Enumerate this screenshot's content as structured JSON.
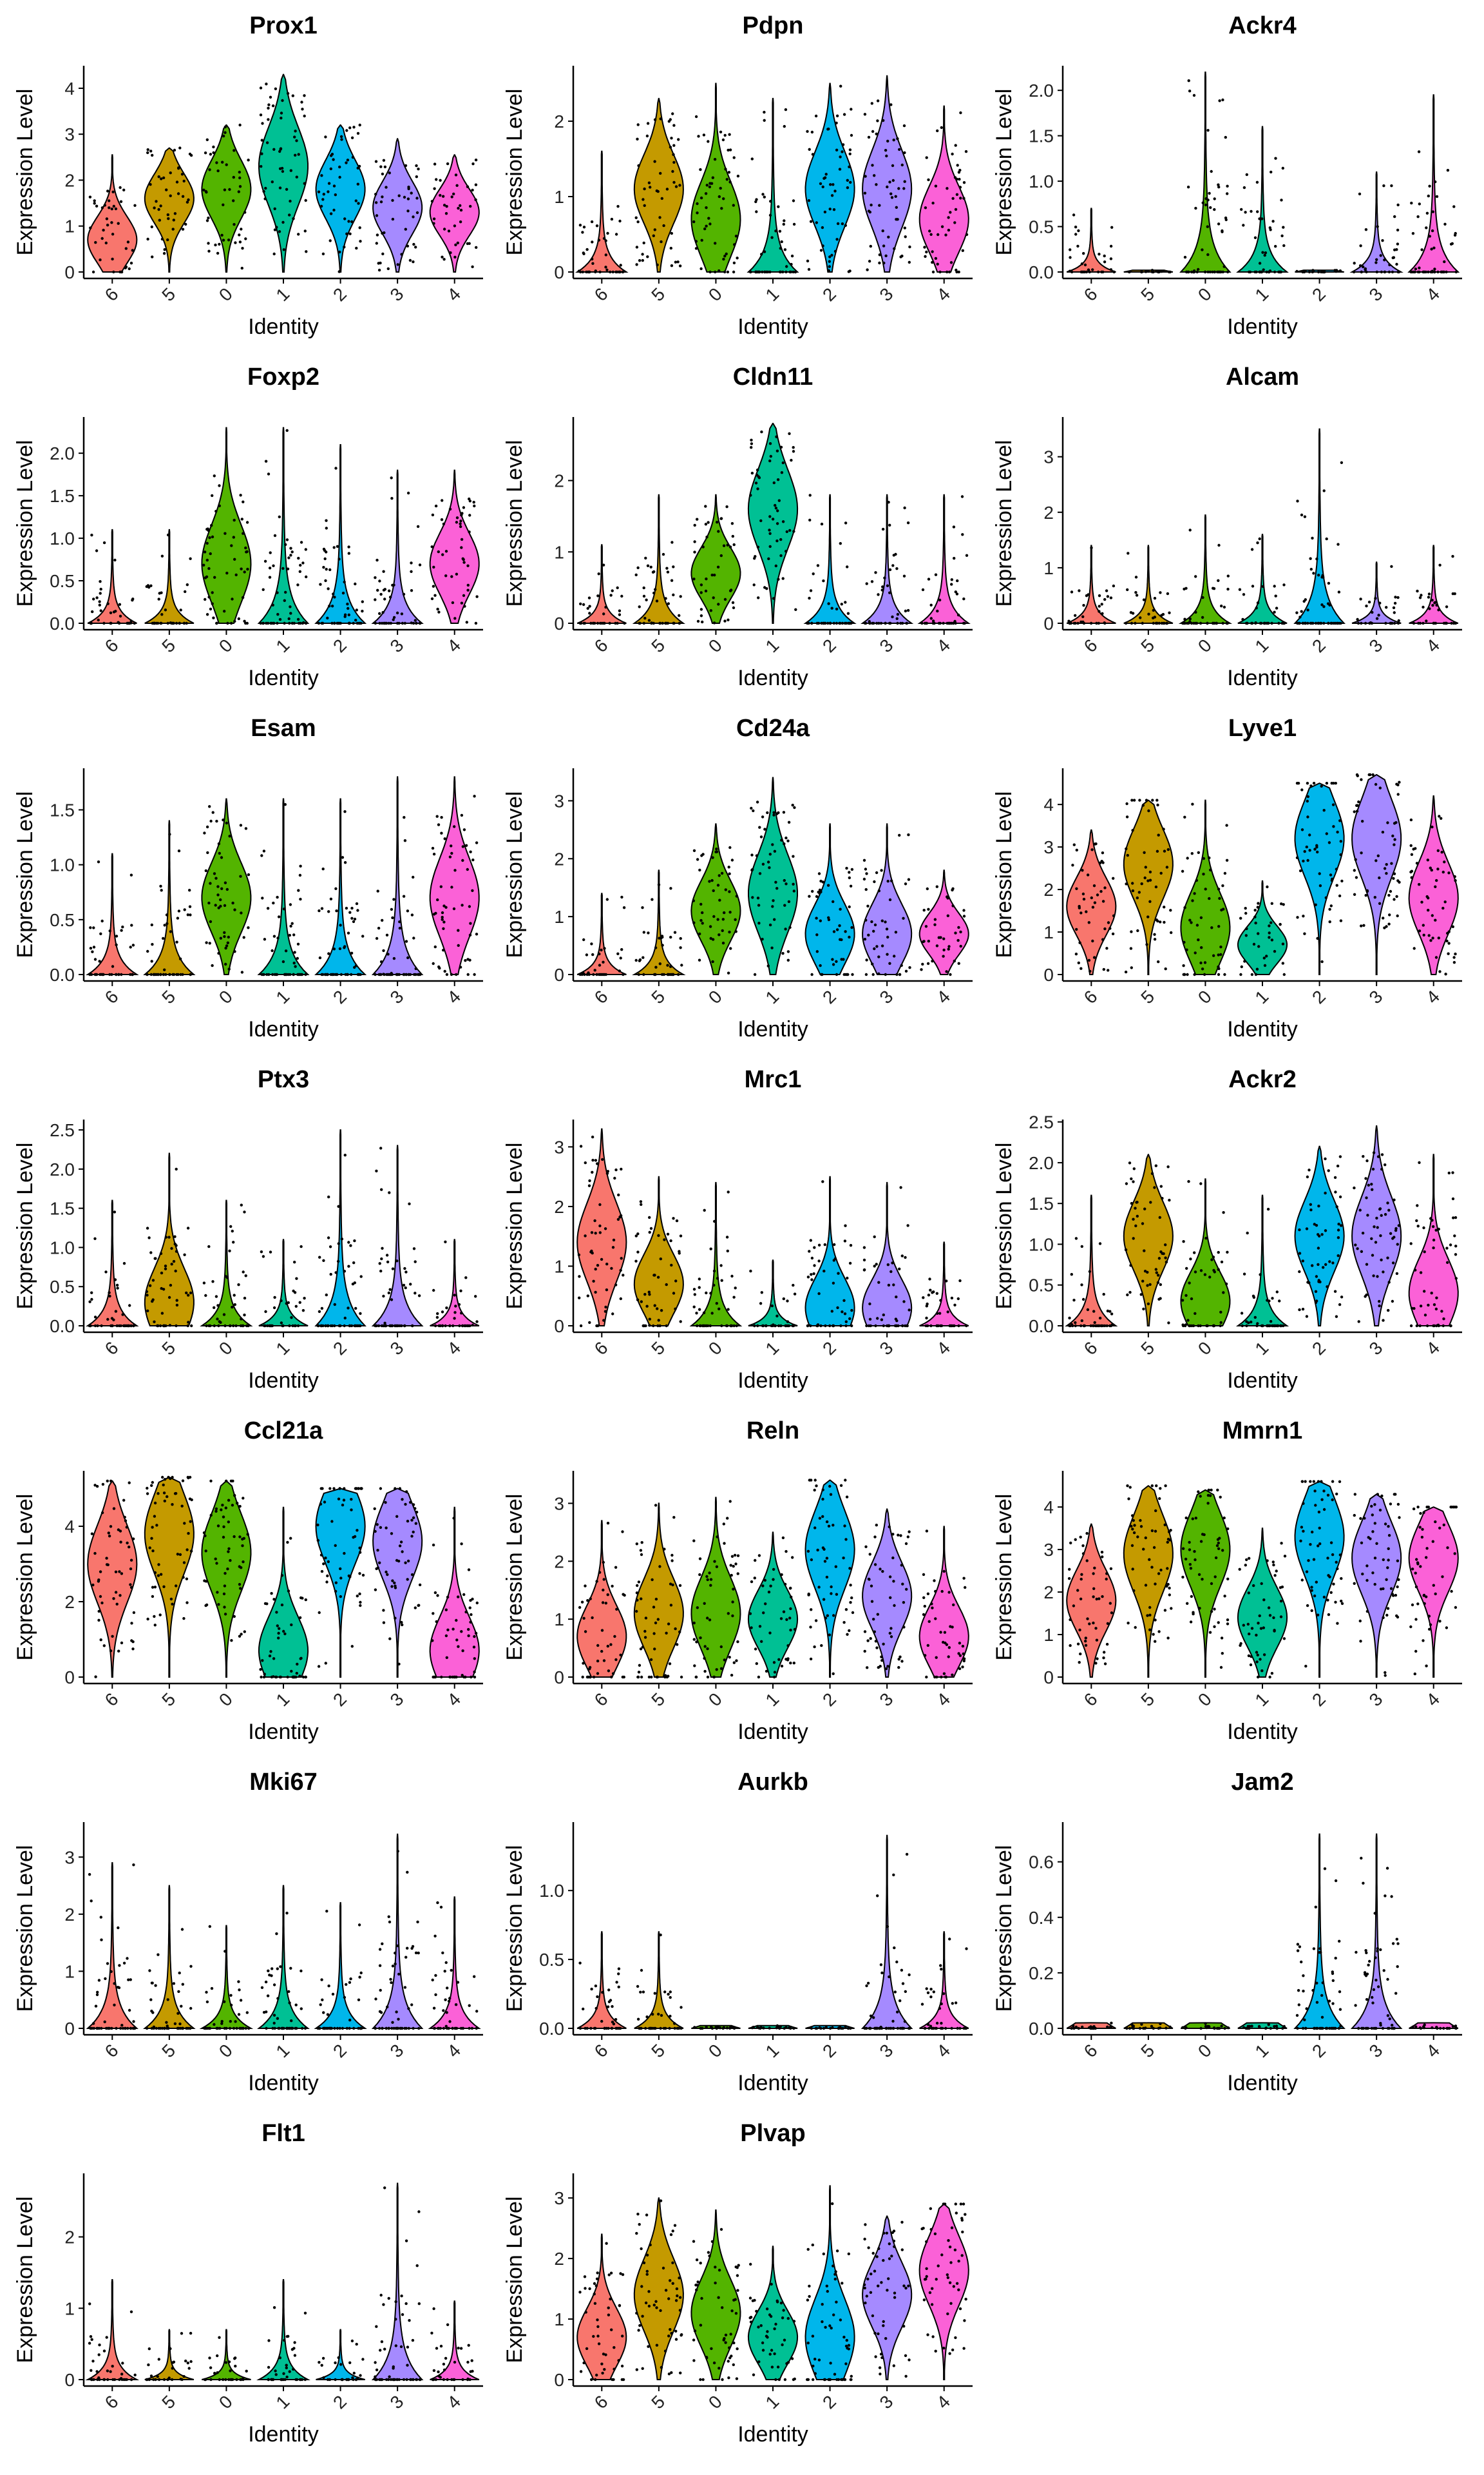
{
  "chart_data": {
    "type": "violin",
    "categories": [
      "6",
      "5",
      "0",
      "1",
      "2",
      "3",
      "4"
    ],
    "colors": [
      "#F8766D",
      "#C49A00",
      "#53B400",
      "#00C094",
      "#00B6EB",
      "#A58AFF",
      "#FB61D7"
    ],
    "xlabel": "Identity",
    "ylabel": "Expression Level",
    "points_shown": true,
    "grid": false,
    "legend": "none",
    "panels": [
      {
        "title": "Prox1",
        "ylim": [
          0,
          4.35
        ],
        "yticks": [
          0,
          1,
          2,
          3,
          4
        ],
        "median": [
          0.7,
          1.6,
          1.8,
          2.3,
          1.8,
          1.4,
          1.3
        ],
        "max": [
          2.55,
          2.7,
          3.2,
          4.3,
          3.2,
          2.9,
          2.55
        ]
      },
      {
        "title": "Pdpn",
        "ylim": [
          0,
          2.65
        ],
        "yticks": [
          0,
          1,
          2
        ],
        "median": [
          0.0,
          1.1,
          0.7,
          0.0,
          1.1,
          1.1,
          0.7
        ],
        "max": [
          1.6,
          2.3,
          2.5,
          2.3,
          2.5,
          2.6,
          2.2
        ]
      },
      {
        "title": "Ackr4",
        "ylim": [
          0,
          2.2
        ],
        "yticks": [
          0,
          0.5,
          1.0,
          1.5,
          2.0
        ],
        "median": [
          0,
          0,
          0,
          0,
          0,
          0,
          0
        ],
        "max": [
          0.7,
          0.0,
          2.2,
          1.6,
          0.0,
          1.1,
          1.95
        ]
      },
      {
        "title": "Foxp2",
        "ylim": [
          0,
          2.35
        ],
        "yticks": [
          0,
          0.5,
          1.0,
          1.5,
          2.0
        ],
        "median": [
          0,
          0,
          0.7,
          0.0,
          0,
          0,
          0.7
        ],
        "max": [
          1.1,
          1.1,
          2.3,
          2.3,
          2.1,
          1.8,
          1.8
        ]
      },
      {
        "title": "Cldn11",
        "ylim": [
          0,
          2.8
        ],
        "yticks": [
          0,
          1,
          2
        ],
        "median": [
          0,
          0,
          0.7,
          1.6,
          0,
          0,
          0
        ],
        "max": [
          1.1,
          1.8,
          1.8,
          2.8,
          1.8,
          1.8,
          1.8
        ]
      },
      {
        "title": "Alcam",
        "ylim": [
          0,
          3.6
        ],
        "yticks": [
          0,
          1,
          2,
          3
        ],
        "median": [
          0,
          0,
          0,
          0,
          0,
          0,
          0
        ],
        "max": [
          1.4,
          1.4,
          1.95,
          1.6,
          3.5,
          1.1,
          1.4
        ]
      },
      {
        "title": "Esam",
        "ylim": [
          0,
          1.82
        ],
        "yticks": [
          0,
          0.5,
          1.0,
          1.5
        ],
        "median": [
          0,
          0,
          0.7,
          0.0,
          0,
          0,
          0.7
        ],
        "max": [
          1.1,
          1.4,
          1.6,
          1.6,
          1.6,
          1.8,
          1.8
        ]
      },
      {
        "title": "Cd24a",
        "ylim": [
          0,
          3.45
        ],
        "yticks": [
          0,
          1,
          2,
          3
        ],
        "median": [
          0,
          0,
          1.1,
          1.4,
          0.7,
          0.7,
          0.7
        ],
        "max": [
          1.4,
          1.8,
          2.6,
          3.4,
          2.6,
          2.6,
          1.8
        ]
      },
      {
        "title": "Lyve1",
        "ylim": [
          0,
          4.7
        ],
        "yticks": [
          0,
          1,
          2,
          3,
          4
        ],
        "median": [
          1.6,
          2.6,
          1.1,
          0.7,
          3.2,
          3.2,
          1.8
        ],
        "max": [
          3.4,
          4.1,
          4.1,
          2.2,
          4.5,
          4.7,
          4.2
        ]
      },
      {
        "title": "Ptx3",
        "ylim": [
          0,
          2.55
        ],
        "yticks": [
          0,
          0.5,
          1.0,
          1.5,
          2.0,
          2.5
        ],
        "median": [
          0,
          0.3,
          0,
          0,
          0,
          0,
          0
        ],
        "max": [
          1.6,
          2.2,
          1.6,
          1.1,
          2.5,
          2.3,
          1.1
        ]
      },
      {
        "title": "Mrc1",
        "ylim": [
          0,
          3.35
        ],
        "yticks": [
          0,
          1,
          2,
          3
        ],
        "median": [
          1.4,
          0.7,
          0,
          0,
          0.3,
          0.3,
          0
        ],
        "max": [
          3.3,
          2.5,
          2.4,
          1.1,
          2.5,
          2.4,
          1.4
        ]
      },
      {
        "title": "Ackr2",
        "ylim": [
          0,
          2.45
        ],
        "yticks": [
          0,
          0.5,
          1.0,
          1.5,
          2.0,
          2.5
        ],
        "median": [
          0,
          1.1,
          0.3,
          0,
          1.1,
          1.1,
          0.4
        ],
        "max": [
          1.6,
          2.1,
          1.8,
          1.6,
          2.2,
          2.45,
          2.1
        ]
      },
      {
        "title": "Ccl21a",
        "ylim": [
          0,
          5.3
        ],
        "yticks": [
          0,
          2,
          4
        ],
        "median": [
          3.0,
          3.8,
          3.3,
          0.7,
          4.0,
          3.6,
          0.7
        ],
        "max": [
          5.2,
          5.3,
          5.2,
          4.5,
          5.0,
          5.0,
          4.5
        ]
      },
      {
        "title": "Reln",
        "ylim": [
          0,
          3.45
        ],
        "yticks": [
          0,
          1,
          2,
          3
        ],
        "median": [
          0.7,
          1.1,
          1.1,
          1.0,
          2.2,
          1.4,
          0.7
        ],
        "max": [
          2.7,
          3.0,
          3.1,
          2.5,
          3.4,
          2.9,
          2.6
        ]
      },
      {
        "title": "Mmrn1",
        "ylim": [
          0,
          4.7
        ],
        "yticks": [
          0,
          1,
          2,
          3,
          4
        ],
        "median": [
          1.8,
          2.9,
          3.0,
          1.4,
          3.3,
          2.8,
          2.8
        ],
        "max": [
          3.6,
          4.5,
          4.4,
          3.5,
          4.6,
          4.3,
          4.0
        ]
      },
      {
        "title": "Mki67",
        "ylim": [
          0,
          3.5
        ],
        "yticks": [
          0,
          1,
          2,
          3
        ],
        "median": [
          0,
          0,
          0,
          0,
          0,
          0,
          0
        ],
        "max": [
          2.9,
          2.5,
          1.8,
          2.5,
          2.2,
          3.4,
          2.3
        ]
      },
      {
        "title": "Aurkb",
        "ylim": [
          0,
          1.45
        ],
        "yticks": [
          0,
          0.5,
          1.0
        ],
        "median": [
          0,
          0,
          0,
          0,
          0,
          0,
          0
        ],
        "max": [
          0.7,
          0.7,
          0.0,
          0.0,
          0.0,
          1.4,
          0.7
        ]
      },
      {
        "title": "Jam2",
        "ylim": [
          0,
          0.72
        ],
        "yticks": [
          0,
          0.2,
          0.4,
          0.6
        ],
        "median": [
          0,
          0,
          0,
          0,
          0,
          0,
          0
        ],
        "max": [
          0,
          0,
          0,
          0,
          0.7,
          0.7,
          0
        ]
      },
      {
        "title": "Flt1",
        "ylim": [
          0,
          2.8
        ],
        "yticks": [
          0,
          1,
          2
        ],
        "median": [
          0,
          0,
          0,
          0,
          0,
          0,
          0
        ],
        "max": [
          1.4,
          0.7,
          0.7,
          1.4,
          0.7,
          2.75,
          1.1
        ]
      },
      {
        "title": "Plvap",
        "ylim": [
          0,
          3.3
        ],
        "yticks": [
          0,
          1,
          2,
          3
        ],
        "median": [
          0.7,
          1.4,
          1.1,
          0.7,
          0.7,
          1.4,
          1.8
        ],
        "max": [
          2.4,
          3.0,
          2.8,
          2.2,
          3.2,
          2.7,
          2.9
        ]
      }
    ]
  }
}
